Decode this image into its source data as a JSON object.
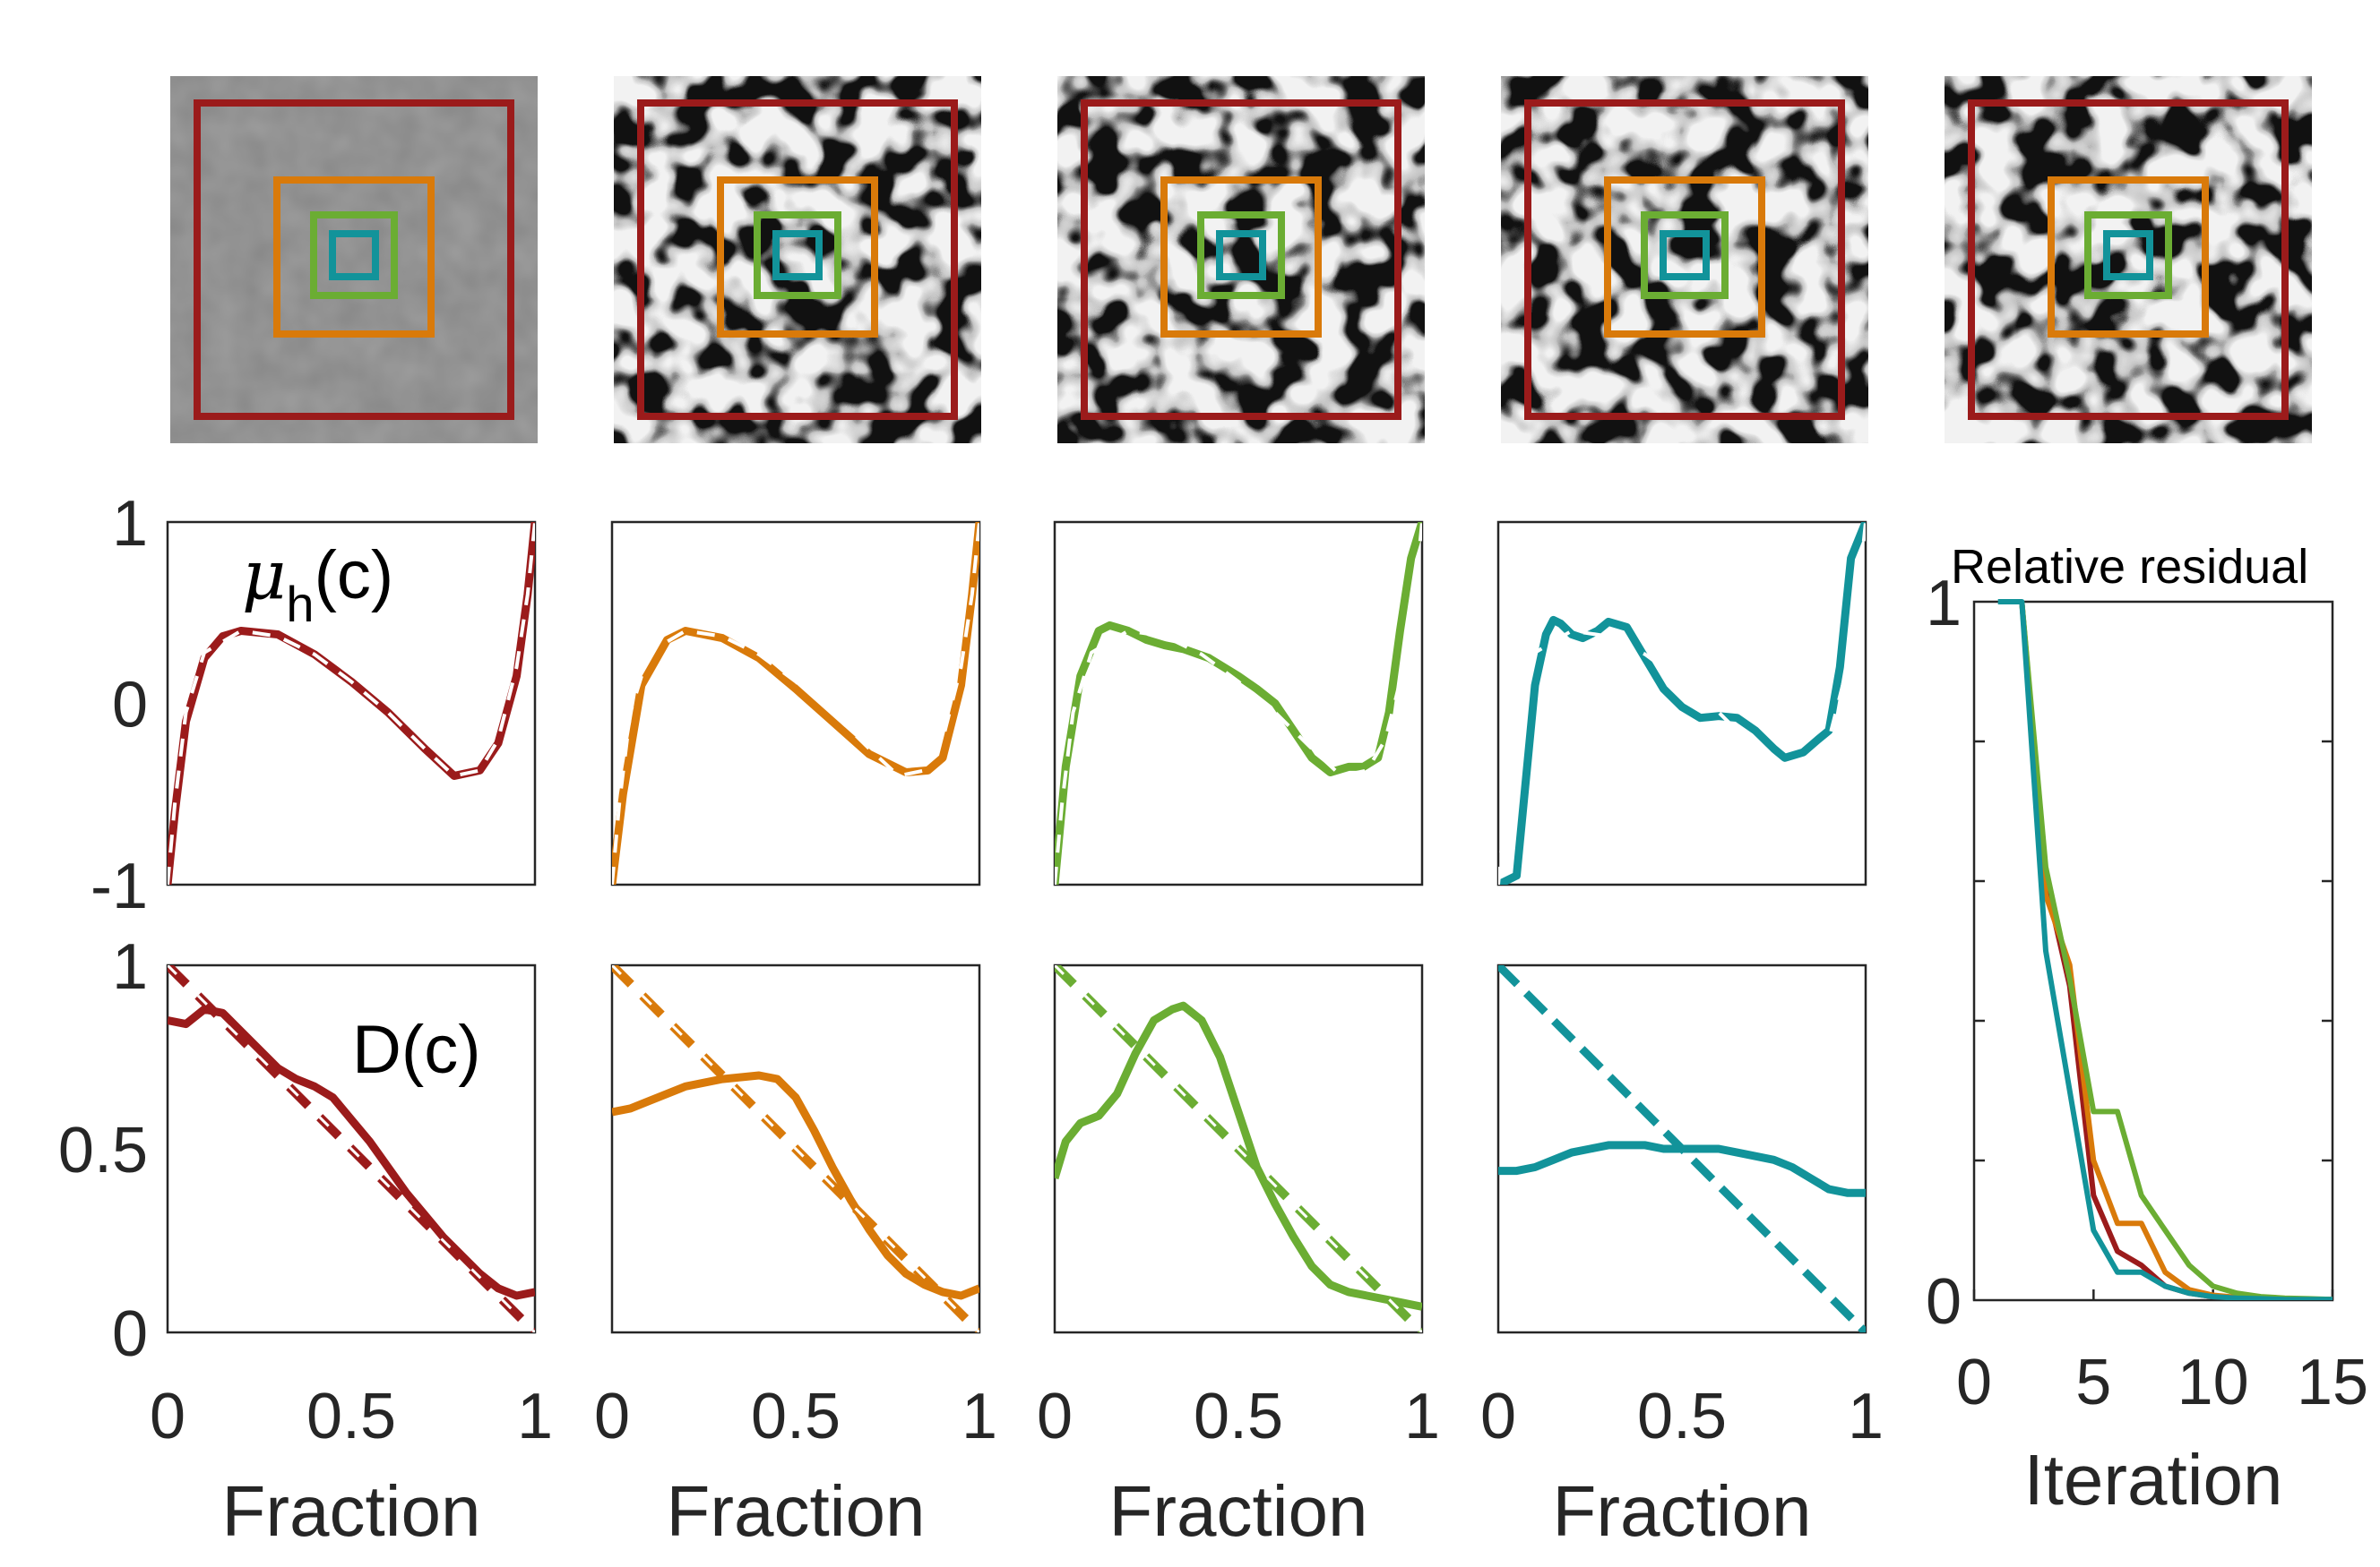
{
  "colors": {
    "red": "#9B1B1B",
    "orange": "#D97A0A",
    "green": "#6BAD33",
    "teal": "#12939A"
  },
  "thumbnails": {
    "count": 5,
    "frames": [
      {
        "name": "large-frame",
        "color": "#9B1B1B"
      },
      {
        "name": "medium-frame",
        "color": "#D97A0A"
      },
      {
        "name": "small-frame",
        "color": "#6BAD33"
      },
      {
        "name": "tiny-frame",
        "color": "#12939A"
      }
    ]
  },
  "chart_data": [
    {
      "id": "mu_row",
      "type": "line",
      "title": "μh(c)",
      "title_symbol": "μ",
      "title_subscript": "h",
      "title_suffix": "(c)",
      "xlim": [
        0,
        1
      ],
      "ylim": [
        -1,
        1
      ],
      "yticks": [
        "1",
        "0",
        "-1"
      ],
      "ytick_values": [
        1,
        0,
        -1
      ],
      "reference": {
        "name": "true-mu",
        "style": "dashed-white-overlay",
        "x": [
          0.0,
          0.02,
          0.05,
          0.1,
          0.2,
          0.3,
          0.4,
          0.5,
          0.6,
          0.7,
          0.78,
          0.85,
          0.9,
          0.95,
          0.98,
          1.0
        ],
        "y": [
          -1.0,
          -0.55,
          -0.05,
          0.28,
          0.4,
          0.37,
          0.27,
          0.12,
          -0.05,
          -0.25,
          -0.4,
          -0.37,
          -0.2,
          0.2,
          0.6,
          1.0
        ]
      },
      "series": [
        {
          "name": "red",
          "color": "#9B1B1B",
          "x": [
            0.0,
            0.02,
            0.05,
            0.1,
            0.15,
            0.2,
            0.3,
            0.4,
            0.5,
            0.6,
            0.7,
            0.78,
            0.85,
            0.9,
            0.95,
            0.98,
            1.0
          ],
          "y": [
            -1.0,
            -0.6,
            -0.1,
            0.25,
            0.37,
            0.4,
            0.38,
            0.27,
            0.12,
            -0.05,
            -0.25,
            -0.4,
            -0.37,
            -0.22,
            0.15,
            0.6,
            1.0
          ]
        },
        {
          "name": "orange",
          "color": "#D97A0A",
          "x": [
            0.0,
            0.03,
            0.08,
            0.15,
            0.2,
            0.3,
            0.4,
            0.5,
            0.6,
            0.7,
            0.8,
            0.86,
            0.9,
            0.95,
            0.98,
            1.0
          ],
          "y": [
            -1.0,
            -0.5,
            0.1,
            0.35,
            0.4,
            0.36,
            0.25,
            0.08,
            -0.1,
            -0.28,
            -0.38,
            -0.37,
            -0.3,
            0.1,
            0.6,
            1.0
          ]
        },
        {
          "name": "green",
          "color": "#6BAD33",
          "x": [
            0.0,
            0.03,
            0.07,
            0.12,
            0.15,
            0.2,
            0.25,
            0.3,
            0.35,
            0.42,
            0.5,
            0.55,
            0.6,
            0.65,
            0.7,
            0.75,
            0.8,
            0.84,
            0.88,
            0.91,
            0.94,
            0.97,
            1.0
          ],
          "y": [
            -1.0,
            -0.35,
            0.15,
            0.4,
            0.43,
            0.4,
            0.35,
            0.32,
            0.3,
            0.25,
            0.15,
            0.08,
            0.0,
            -0.15,
            -0.3,
            -0.38,
            -0.35,
            -0.35,
            -0.3,
            -0.05,
            0.4,
            0.8,
            1.0
          ]
        },
        {
          "name": "teal",
          "color": "#12939A",
          "x": [
            0.0,
            0.05,
            0.1,
            0.13,
            0.15,
            0.17,
            0.2,
            0.23,
            0.27,
            0.3,
            0.35,
            0.4,
            0.45,
            0.5,
            0.55,
            0.6,
            0.65,
            0.7,
            0.75,
            0.78,
            0.83,
            0.87,
            0.9,
            0.93,
            0.96,
            1.0
          ],
          "y": [
            -1.0,
            -0.95,
            0.1,
            0.38,
            0.46,
            0.44,
            0.38,
            0.36,
            0.4,
            0.45,
            0.42,
            0.25,
            0.08,
            -0.02,
            -0.08,
            -0.07,
            -0.08,
            -0.15,
            -0.25,
            -0.3,
            -0.27,
            -0.2,
            -0.15,
            0.2,
            0.8,
            1.0
          ]
        }
      ]
    },
    {
      "id": "d_row",
      "type": "line",
      "title": "D(c)",
      "xlim": [
        0,
        1
      ],
      "ylim": [
        0,
        1
      ],
      "yticks": [
        "1",
        "0.5",
        "0"
      ],
      "ytick_values": [
        1,
        0.5,
        0
      ],
      "xticks": [
        "0",
        "0.5",
        "1"
      ],
      "xtick_values": [
        0,
        0.5,
        1
      ],
      "xlabel": "Fraction",
      "reference": {
        "name": "true-D",
        "style": "dashed-white-overlay",
        "x": [
          0,
          1
        ],
        "y": [
          1,
          0
        ]
      },
      "series": [
        {
          "name": "red",
          "color": "#9B1B1B",
          "x": [
            0.0,
            0.05,
            0.1,
            0.15,
            0.2,
            0.25,
            0.3,
            0.35,
            0.4,
            0.45,
            0.5,
            0.55,
            0.6,
            0.65,
            0.7,
            0.75,
            0.8,
            0.85,
            0.9,
            0.95,
            1.0
          ],
          "y": [
            0.85,
            0.84,
            0.88,
            0.87,
            0.82,
            0.77,
            0.72,
            0.69,
            0.67,
            0.64,
            0.58,
            0.52,
            0.45,
            0.38,
            0.32,
            0.26,
            0.21,
            0.16,
            0.12,
            0.1,
            0.11
          ]
        },
        {
          "name": "orange",
          "color": "#D97A0A",
          "x": [
            0.0,
            0.05,
            0.1,
            0.2,
            0.3,
            0.4,
            0.45,
            0.5,
            0.55,
            0.6,
            0.65,
            0.7,
            0.75,
            0.8,
            0.85,
            0.9,
            0.95,
            1.0
          ],
          "y": [
            0.6,
            0.61,
            0.63,
            0.67,
            0.69,
            0.7,
            0.69,
            0.64,
            0.55,
            0.45,
            0.36,
            0.28,
            0.21,
            0.16,
            0.13,
            0.11,
            0.1,
            0.12
          ]
        },
        {
          "name": "green",
          "color": "#6BAD33",
          "x": [
            0.0,
            0.03,
            0.07,
            0.12,
            0.17,
            0.22,
            0.27,
            0.32,
            0.35,
            0.4,
            0.45,
            0.5,
            0.55,
            0.6,
            0.65,
            0.7,
            0.75,
            0.8,
            0.85,
            0.9,
            0.95,
            1.0
          ],
          "y": [
            0.42,
            0.52,
            0.57,
            0.59,
            0.65,
            0.76,
            0.85,
            0.88,
            0.89,
            0.85,
            0.75,
            0.6,
            0.45,
            0.35,
            0.26,
            0.18,
            0.13,
            0.11,
            0.1,
            0.09,
            0.08,
            0.07
          ]
        },
        {
          "name": "teal",
          "color": "#12939A",
          "x": [
            0.0,
            0.05,
            0.1,
            0.15,
            0.2,
            0.25,
            0.3,
            0.35,
            0.4,
            0.45,
            0.5,
            0.55,
            0.6,
            0.65,
            0.7,
            0.75,
            0.8,
            0.85,
            0.9,
            0.95,
            1.0
          ],
          "y": [
            0.44,
            0.44,
            0.45,
            0.47,
            0.49,
            0.5,
            0.51,
            0.51,
            0.51,
            0.5,
            0.5,
            0.5,
            0.5,
            0.49,
            0.48,
            0.47,
            0.45,
            0.42,
            0.39,
            0.38,
            0.38
          ]
        }
      ]
    },
    {
      "id": "residual",
      "type": "line",
      "title": "Relative residual",
      "xlabel": "Iteration",
      "xlim": [
        0,
        15
      ],
      "ylim": [
        0,
        1
      ],
      "xticks": [
        "0",
        "5",
        "10",
        "15"
      ],
      "xtick_values": [
        0,
        5,
        10,
        15
      ],
      "yticks": [
        "1",
        "0"
      ],
      "ytick_values": [
        1,
        0
      ],
      "minor_yticks": [
        0.2,
        0.4,
        0.6,
        0.8
      ],
      "series": [
        {
          "name": "red",
          "color": "#9B1B1B",
          "x": [
            2,
            3,
            4,
            5,
            6,
            7,
            8,
            9,
            10,
            11,
            12,
            13,
            14,
            15
          ],
          "y": [
            1.0,
            0.6,
            0.45,
            0.15,
            0.07,
            0.05,
            0.02,
            0.01,
            0.005,
            0.003,
            0.002,
            0.001,
            0.001,
            0.001
          ]
        },
        {
          "name": "orange",
          "color": "#D97A0A",
          "x": [
            2,
            3,
            4,
            5,
            6,
            7,
            8,
            9,
            10,
            11,
            12,
            13,
            14,
            15
          ],
          "y": [
            1.0,
            0.58,
            0.48,
            0.2,
            0.11,
            0.11,
            0.04,
            0.015,
            0.007,
            0.004,
            0.002,
            0.001,
            0.001,
            0.001
          ]
        },
        {
          "name": "green",
          "color": "#6BAD33",
          "x": [
            2,
            3,
            4,
            5,
            6,
            7,
            8,
            9,
            10,
            11,
            12,
            13,
            14,
            15
          ],
          "y": [
            1.0,
            0.62,
            0.46,
            0.27,
            0.27,
            0.15,
            0.1,
            0.05,
            0.02,
            0.01,
            0.005,
            0.003,
            0.002,
            0.001
          ]
        },
        {
          "name": "teal",
          "color": "#12939A",
          "x": [
            1,
            2,
            3,
            4,
            5,
            6,
            7,
            8,
            9,
            10,
            11,
            12,
            13,
            14,
            15
          ],
          "y": [
            1.0,
            1.0,
            0.5,
            0.3,
            0.1,
            0.04,
            0.04,
            0.02,
            0.01,
            0.005,
            0.003,
            0.002,
            0.001,
            0.001,
            0.001
          ]
        }
      ]
    }
  ]
}
